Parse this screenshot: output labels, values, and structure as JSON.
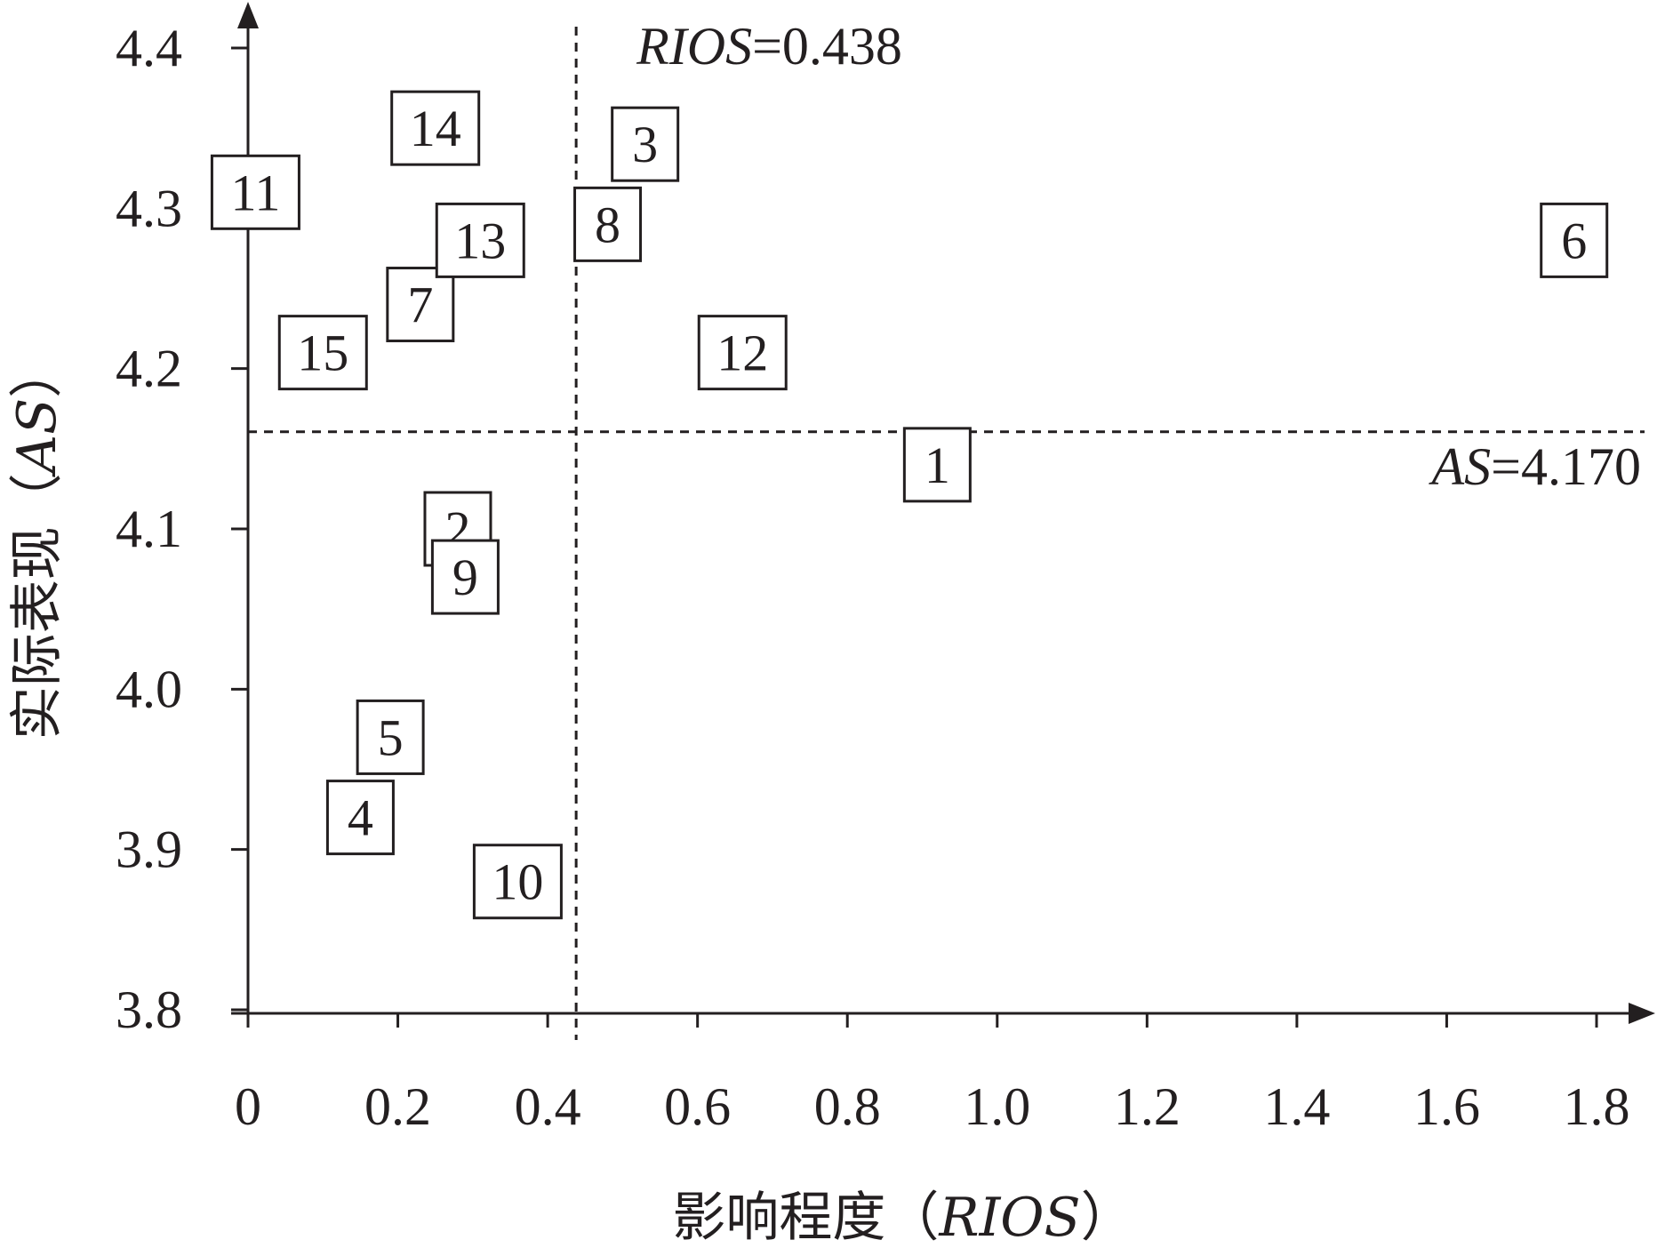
{
  "chart_data": {
    "type": "scatter",
    "xlabel": {
      "prefix": "影响程度（",
      "italic": "RIOS",
      "suffix": "）"
    },
    "ylabel": {
      "prefix": "实际表现（",
      "italic": "AS",
      "suffix": "）"
    },
    "xlim": [
      0,
      1.8
    ],
    "ylim": [
      3.8,
      4.4
    ],
    "x_ticks": [
      "0",
      "0.2",
      "0.4",
      "0.6",
      "0.8",
      "1.0",
      "1.2",
      "1.4",
      "1.6",
      "1.8"
    ],
    "y_ticks": [
      "3.8",
      "3.9",
      "4.0",
      "4.1",
      "4.2",
      "4.3",
      "4.4"
    ],
    "grid": false,
    "reference_lines": {
      "vertical": {
        "value": 0.438,
        "label_italic": "RIOS",
        "label_value": "=0.438"
      },
      "horizontal": {
        "value": 4.17,
        "label_italic": "AS",
        "label_value": "=4.170"
      }
    },
    "points": [
      {
        "label": "1",
        "x": 0.92,
        "y": 4.14
      },
      {
        "label": "2",
        "x": 0.28,
        "y": 4.1
      },
      {
        "label": "3",
        "x": 0.53,
        "y": 4.34
      },
      {
        "label": "4",
        "x": 0.15,
        "y": 3.92
      },
      {
        "label": "5",
        "x": 0.19,
        "y": 3.97
      },
      {
        "label": "6",
        "x": 1.77,
        "y": 4.28
      },
      {
        "label": "7",
        "x": 0.23,
        "y": 4.24
      },
      {
        "label": "8",
        "x": 0.48,
        "y": 4.29
      },
      {
        "label": "9",
        "x": 0.29,
        "y": 4.07
      },
      {
        "label": "10",
        "x": 0.36,
        "y": 3.88
      },
      {
        "label": "11",
        "x": 0.01,
        "y": 4.31
      },
      {
        "label": "12",
        "x": 0.66,
        "y": 4.21
      },
      {
        "label": "13",
        "x": 0.31,
        "y": 4.28
      },
      {
        "label": "14",
        "x": 0.25,
        "y": 4.35
      },
      {
        "label": "15",
        "x": 0.1,
        "y": 4.21
      }
    ]
  }
}
